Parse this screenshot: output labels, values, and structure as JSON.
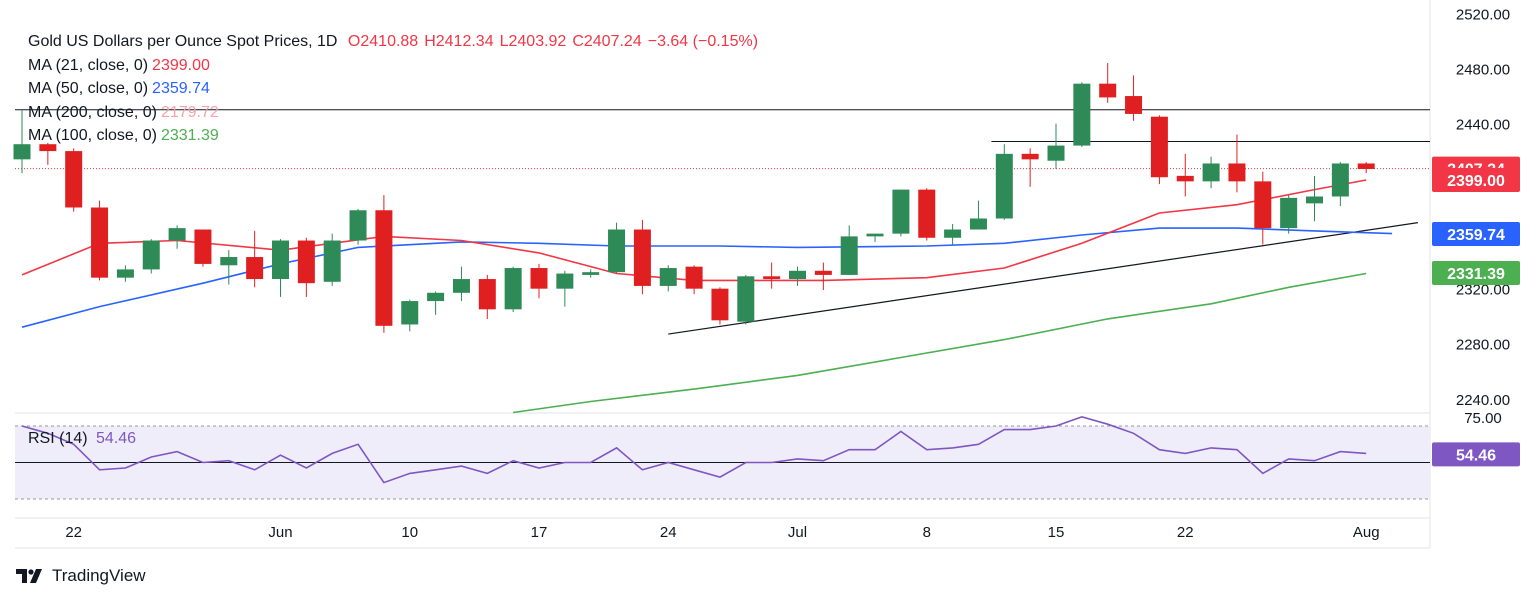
{
  "header": {
    "symbol": "Gold US Dollars per Ounce Spot Prices, 1D",
    "open": "O2410.88",
    "high": "H2412.34",
    "low": "L2403.92",
    "close": "C2407.24",
    "change": "−3.64 (−0.15%)"
  },
  "legend": [
    {
      "label": "MA (21, close, 0)",
      "value": "2399.00",
      "color": "#f23645"
    },
    {
      "label": "MA (50, close, 0)",
      "value": "2359.74",
      "color": "#2962ff"
    },
    {
      "label": "MA (200, close, 0)",
      "value": "2179.72",
      "color": "#f7a1aa"
    },
    {
      "label": "MA (100, close, 0)",
      "value": "2331.39",
      "color": "#4caf50"
    }
  ],
  "rsi": {
    "label": "RSI (14)",
    "value": "54.46",
    "color": "#7e57c2"
  },
  "brand": "TradingView",
  "chart_data": {
    "type": "candlestick",
    "title": "Gold US Dollars per Ounce Spot Prices, 1D",
    "colors": {
      "up": "#2e8b57",
      "down": "#e02020",
      "ma21": "#f23645",
      "ma50": "#2962ff",
      "ma100": "#4caf50",
      "rsi": "#7e57c2"
    },
    "price_axis": {
      "ticks": [
        "2520.00",
        "2480.00",
        "2440.00",
        "2320.00",
        "2280.00",
        "2240.00"
      ],
      "ylim": [
        2230,
        2525
      ]
    },
    "x_labels": [
      {
        "label": "22",
        "index": 2
      },
      {
        "label": "Jun",
        "index": 10
      },
      {
        "label": "10",
        "index": 15
      },
      {
        "label": "17",
        "index": 20
      },
      {
        "label": "24",
        "index": 25
      },
      {
        "label": "Jul",
        "index": 30
      },
      {
        "label": "8",
        "index": 35
      },
      {
        "label": "15",
        "index": 40
      },
      {
        "label": "22",
        "index": 45
      },
      {
        "label": "Aug",
        "index": 52
      }
    ],
    "candles": [
      {
        "o": 2414,
        "h": 2450,
        "l": 2404,
        "c": 2425
      },
      {
        "o": 2425,
        "h": 2426,
        "l": 2410,
        "c": 2420
      },
      {
        "o": 2420,
        "h": 2422,
        "l": 2376,
        "c": 2379
      },
      {
        "o": 2379,
        "h": 2384,
        "l": 2326,
        "c": 2328
      },
      {
        "o": 2328,
        "h": 2337,
        "l": 2325,
        "c": 2334
      },
      {
        "o": 2334,
        "h": 2356,
        "l": 2331,
        "c": 2355
      },
      {
        "o": 2355,
        "h": 2366,
        "l": 2349,
        "c": 2364
      },
      {
        "o": 2363,
        "h": 2363,
        "l": 2336,
        "c": 2338
      },
      {
        "o": 2337,
        "h": 2348,
        "l": 2323,
        "c": 2343
      },
      {
        "o": 2343,
        "h": 2362,
        "l": 2321,
        "c": 2327
      },
      {
        "o": 2327,
        "h": 2356,
        "l": 2314,
        "c": 2355
      },
      {
        "o": 2355,
        "h": 2357,
        "l": 2314,
        "c": 2324
      },
      {
        "o": 2325,
        "h": 2360,
        "l": 2322,
        "c": 2355
      },
      {
        "o": 2355,
        "h": 2378,
        "l": 2352,
        "c": 2377
      },
      {
        "o": 2377,
        "h": 2388,
        "l": 2288,
        "c": 2293
      },
      {
        "o": 2294,
        "h": 2312,
        "l": 2289,
        "c": 2311
      },
      {
        "o": 2311,
        "h": 2318,
        "l": 2301,
        "c": 2317
      },
      {
        "o": 2317,
        "h": 2336,
        "l": 2311,
        "c": 2327
      },
      {
        "o": 2327,
        "h": 2330,
        "l": 2298,
        "c": 2305
      },
      {
        "o": 2305,
        "h": 2336,
        "l": 2303,
        "c": 2335
      },
      {
        "o": 2335,
        "h": 2338,
        "l": 2313,
        "c": 2320
      },
      {
        "o": 2320,
        "h": 2333,
        "l": 2307,
        "c": 2331
      },
      {
        "o": 2330,
        "h": 2334,
        "l": 2328,
        "c": 2332
      },
      {
        "o": 2332,
        "h": 2368,
        "l": 2331,
        "c": 2363
      },
      {
        "o": 2363,
        "h": 2370,
        "l": 2316,
        "c": 2322
      },
      {
        "o": 2322,
        "h": 2337,
        "l": 2318,
        "c": 2335
      },
      {
        "o": 2336,
        "h": 2337,
        "l": 2316,
        "c": 2320
      },
      {
        "o": 2320,
        "h": 2321,
        "l": 2294,
        "c": 2297
      },
      {
        "o": 2296,
        "h": 2330,
        "l": 2294,
        "c": 2329
      },
      {
        "o": 2329,
        "h": 2339,
        "l": 2320,
        "c": 2327
      },
      {
        "o": 2327,
        "h": 2336,
        "l": 2322,
        "c": 2333
      },
      {
        "o": 2333,
        "h": 2339,
        "l": 2319,
        "c": 2330
      },
      {
        "o": 2330,
        "h": 2366,
        "l": 2330,
        "c": 2358
      },
      {
        "o": 2358,
        "h": 2360,
        "l": 2354,
        "c": 2360
      },
      {
        "o": 2360,
        "h": 2392,
        "l": 2358,
        "c": 2392
      },
      {
        "o": 2392,
        "h": 2393,
        "l": 2355,
        "c": 2357
      },
      {
        "o": 2357,
        "h": 2367,
        "l": 2352,
        "c": 2363
      },
      {
        "o": 2363,
        "h": 2384,
        "l": 2363,
        "c": 2371
      },
      {
        "o": 2371,
        "h": 2425,
        "l": 2370,
        "c": 2418
      },
      {
        "o": 2418,
        "h": 2422,
        "l": 2394,
        "c": 2414
      },
      {
        "o": 2413,
        "h": 2440,
        "l": 2407,
        "c": 2424
      },
      {
        "o": 2424,
        "h": 2470,
        "l": 2423,
        "c": 2469
      },
      {
        "o": 2469,
        "h": 2484,
        "l": 2455,
        "c": 2459
      },
      {
        "o": 2460,
        "h": 2475,
        "l": 2442,
        "c": 2447
      },
      {
        "o": 2445,
        "h": 2446,
        "l": 2396,
        "c": 2401
      },
      {
        "o": 2402,
        "h": 2418,
        "l": 2387,
        "c": 2398
      },
      {
        "o": 2398,
        "h": 2416,
        "l": 2393,
        "c": 2411
      },
      {
        "o": 2411,
        "h": 2432,
        "l": 2390,
        "c": 2398
      },
      {
        "o": 2398,
        "h": 2405,
        "l": 2352,
        "c": 2364
      },
      {
        "o": 2364,
        "h": 2388,
        "l": 2360,
        "c": 2386
      },
      {
        "o": 2382,
        "h": 2402,
        "l": 2369,
        "c": 2387
      },
      {
        "o": 2387,
        "h": 2412,
        "l": 2380,
        "c": 2411
      },
      {
        "o": 2411,
        "h": 2412,
        "l": 2404,
        "c": 2407
      }
    ],
    "ma21": [
      [
        0,
        2330
      ],
      [
        3,
        2353
      ],
      [
        6,
        2355
      ],
      [
        10,
        2348
      ],
      [
        14,
        2358
      ],
      [
        17,
        2355
      ],
      [
        20,
        2346
      ],
      [
        23,
        2331
      ],
      [
        26,
        2326
      ],
      [
        28,
        2326
      ],
      [
        31,
        2326
      ],
      [
        35,
        2328
      ],
      [
        38,
        2335
      ],
      [
        41,
        2353
      ],
      [
        44,
        2375
      ],
      [
        47,
        2381
      ],
      [
        50,
        2392
      ],
      [
        52,
        2399
      ]
    ],
    "ma50": [
      [
        0,
        2292
      ],
      [
        3,
        2307
      ],
      [
        7,
        2324
      ],
      [
        10,
        2338
      ],
      [
        13,
        2350
      ],
      [
        17,
        2354
      ],
      [
        20,
        2353
      ],
      [
        23,
        2351
      ],
      [
        27,
        2351
      ],
      [
        30,
        2350
      ],
      [
        35,
        2351
      ],
      [
        38,
        2353
      ],
      [
        41,
        2359
      ],
      [
        44,
        2364
      ],
      [
        47,
        2364
      ],
      [
        50,
        2362
      ],
      [
        53,
        2360
      ]
    ],
    "ma100": [
      [
        19,
        2230
      ],
      [
        22,
        2238
      ],
      [
        26,
        2247
      ],
      [
        30,
        2257
      ],
      [
        34,
        2270
      ],
      [
        38,
        2283
      ],
      [
        42,
        2298
      ],
      [
        46,
        2309
      ],
      [
        49,
        2321
      ],
      [
        52,
        2331
      ]
    ],
    "horizontal_lines": [
      2450,
      2427
    ],
    "trendline": {
      "from": [
        25,
        2287
      ],
      "to": [
        54,
        2368
      ]
    },
    "last_price_line": 2407.24,
    "price_tags": [
      {
        "value": "2407.24",
        "color": "#f23645"
      },
      {
        "value": "2399.00",
        "color": "#f23645"
      },
      {
        "value": "2359.74",
        "color": "#2962ff"
      },
      {
        "value": "2331.39",
        "color": "#4caf50"
      }
    ],
    "rsi": {
      "levels": {
        "upper": 70,
        "middle": 50,
        "lower": 30
      },
      "axis_tick": "75.00",
      "current": "54.46",
      "points": [
        [
          0,
          70
        ],
        [
          1,
          66
        ],
        [
          2,
          60
        ],
        [
          3,
          46
        ],
        [
          4,
          47
        ],
        [
          5,
          53
        ],
        [
          6,
          56
        ],
        [
          7,
          50
        ],
        [
          8,
          51
        ],
        [
          9,
          46
        ],
        [
          10,
          54
        ],
        [
          11,
          47
        ],
        [
          12,
          55
        ],
        [
          13,
          60
        ],
        [
          14,
          39
        ],
        [
          15,
          44
        ],
        [
          16,
          46
        ],
        [
          17,
          48
        ],
        [
          18,
          44
        ],
        [
          19,
          51
        ],
        [
          20,
          47
        ],
        [
          21,
          50
        ],
        [
          22,
          50
        ],
        [
          23,
          58
        ],
        [
          24,
          46
        ],
        [
          25,
          50
        ],
        [
          26,
          46
        ],
        [
          27,
          42
        ],
        [
          28,
          50
        ],
        [
          29,
          50
        ],
        [
          30,
          52
        ],
        [
          31,
          51
        ],
        [
          32,
          57
        ],
        [
          33,
          57
        ],
        [
          34,
          67
        ],
        [
          35,
          57
        ],
        [
          36,
          58
        ],
        [
          37,
          60
        ],
        [
          38,
          68
        ],
        [
          39,
          68
        ],
        [
          40,
          70
        ],
        [
          41,
          75
        ],
        [
          42,
          71
        ],
        [
          43,
          66
        ],
        [
          44,
          57
        ],
        [
          45,
          55
        ],
        [
          46,
          58
        ],
        [
          47,
          57
        ],
        [
          48,
          44
        ],
        [
          49,
          52
        ],
        [
          50,
          51
        ],
        [
          51,
          56
        ],
        [
          52,
          55
        ]
      ]
    }
  }
}
